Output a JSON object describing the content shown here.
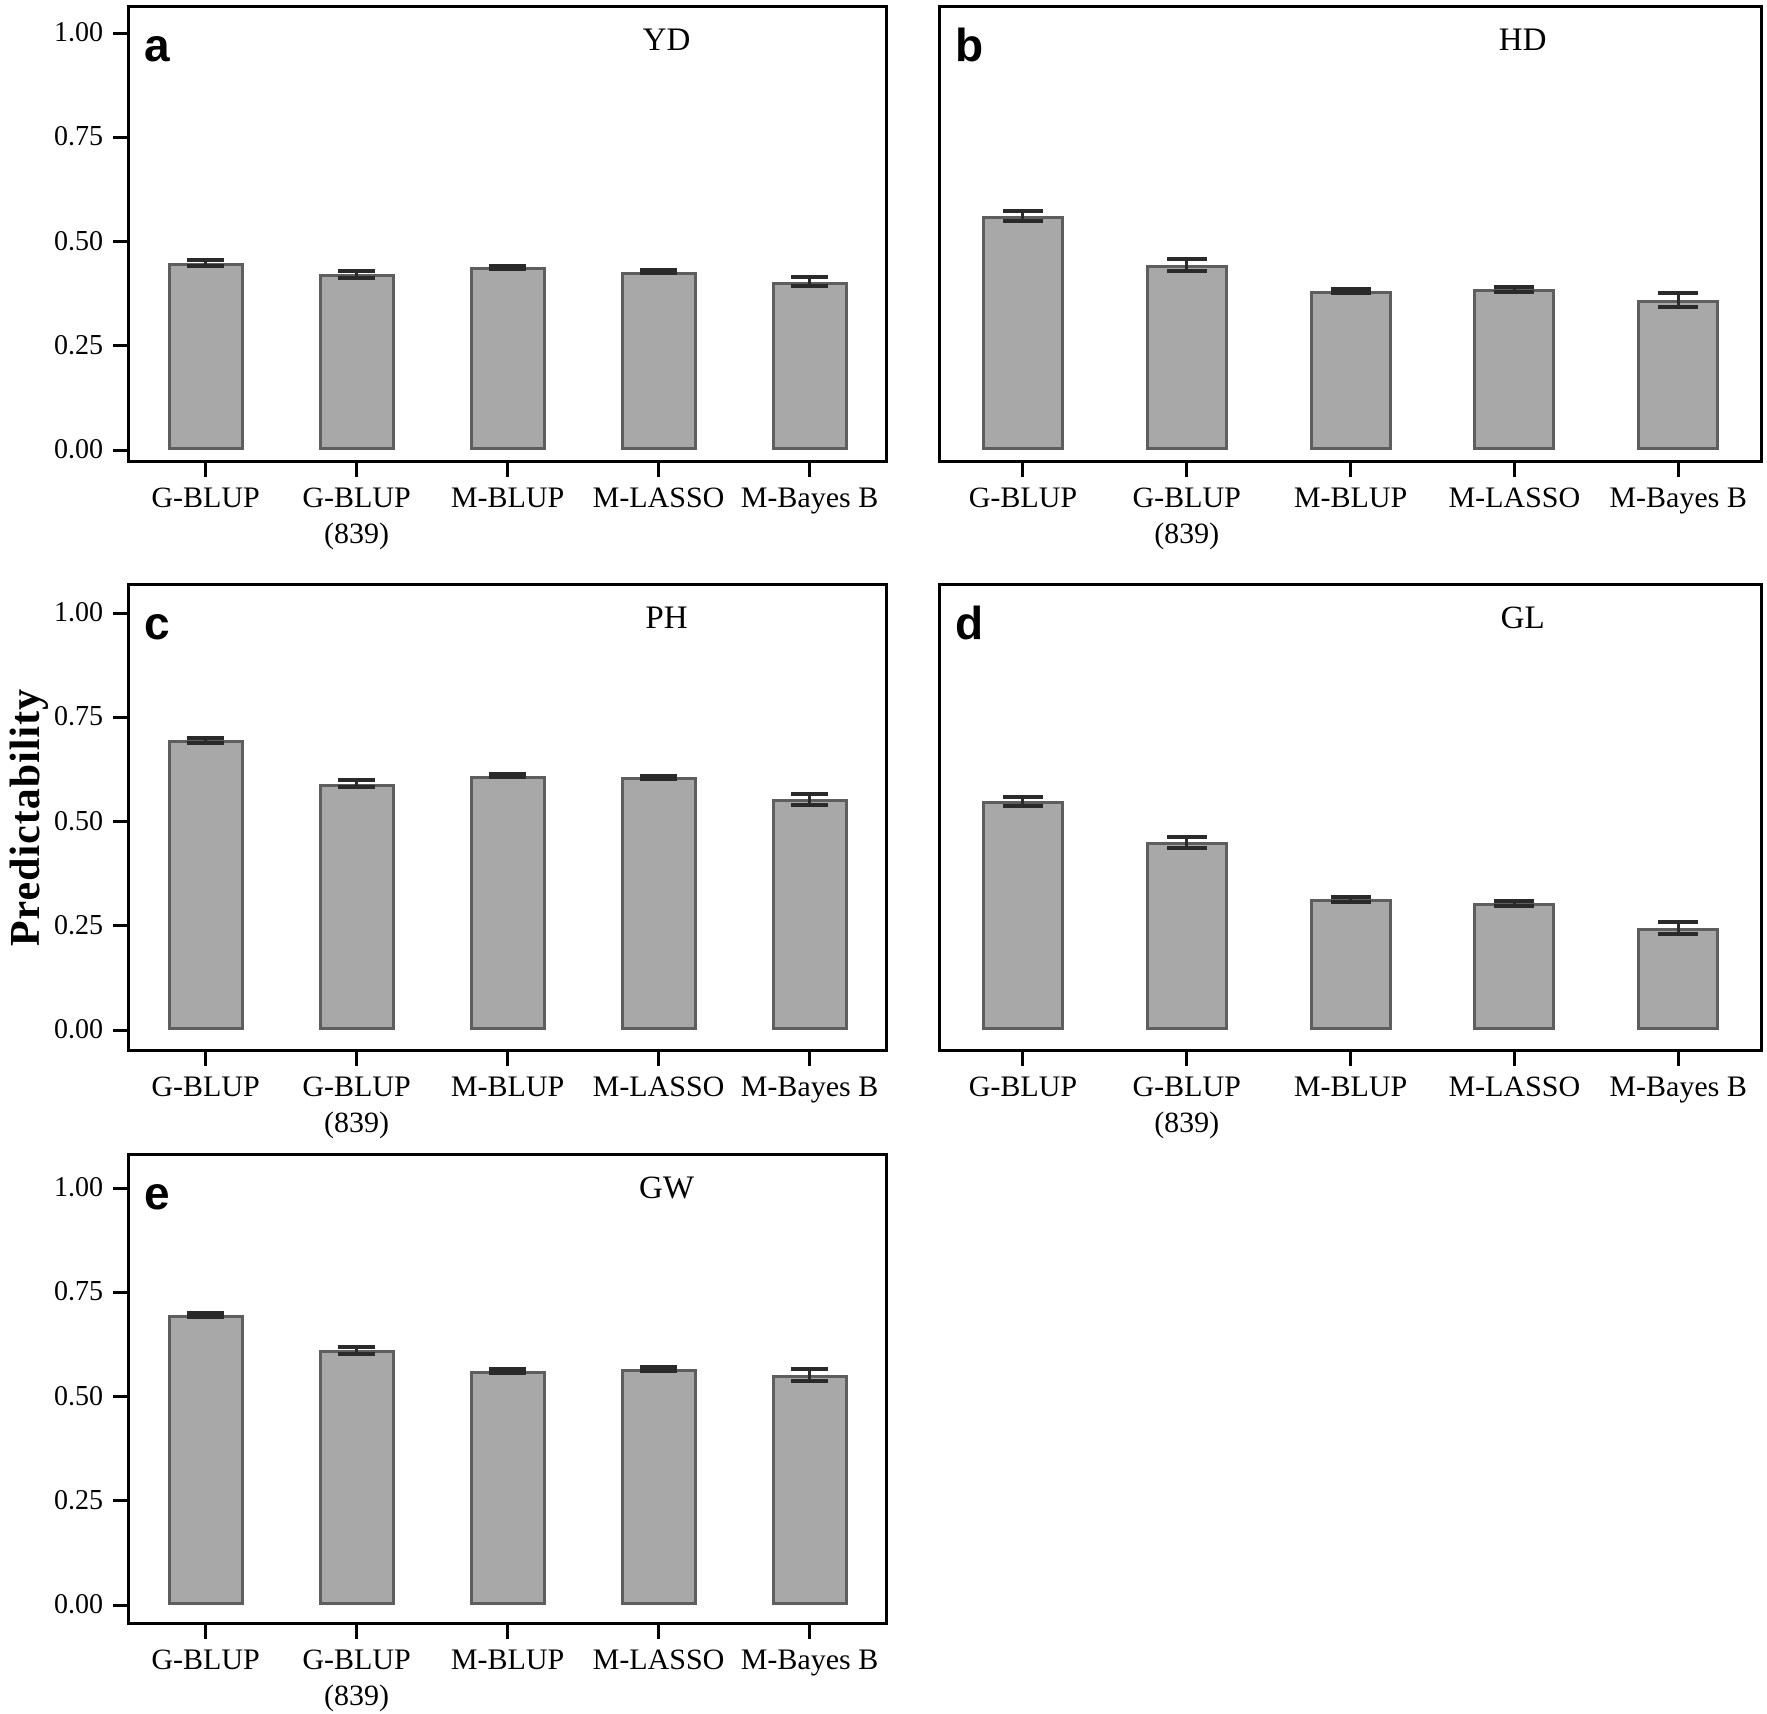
{
  "figure": {
    "background": "#ffffff",
    "ylabel": "Predictability",
    "y_tick_labels": [
      "1.00",
      "0.75",
      "0.50",
      "0.25",
      "0.00"
    ],
    "categories": [
      "G-BLUP",
      "G-BLUP (839)",
      "M-BLUP",
      "M-LASSO",
      "M-Bayes B"
    ],
    "category_label_lines": [
      [
        "G-BLUP"
      ],
      [
        "G-BLUP",
        "(839)"
      ],
      [
        "M-BLUP"
      ],
      [
        "M-LASSO"
      ],
      [
        "M-Bayes B"
      ]
    ],
    "colors": {
      "bar_fill": "#a8a8a8",
      "bar_border": "#5e5e5e",
      "error_bar": "#2a2a2a",
      "axis": "#000000",
      "text": "#000000"
    }
  },
  "chart_data": [
    {
      "type": "bar",
      "panel": "a",
      "title": "YD",
      "ylabel": "Predictability",
      "ylim": [
        0,
        1
      ],
      "yticks": [
        1.0,
        0.75,
        0.5,
        0.25,
        0.0
      ],
      "categories": [
        "G-BLUP",
        "G-BLUP (839)",
        "M-BLUP",
        "M-LASSO",
        "M-Bayes B"
      ],
      "values": [
        0.448,
        0.421,
        0.438,
        0.428,
        0.404
      ],
      "errors": [
        0.007,
        0.009,
        0.004,
        0.004,
        0.011
      ]
    },
    {
      "type": "bar",
      "panel": "b",
      "title": "HD",
      "ylabel": "Predictability",
      "ylim": [
        0,
        1
      ],
      "yticks": [
        1.0,
        0.75,
        0.5,
        0.25,
        0.0
      ],
      "categories": [
        "G-BLUP",
        "G-BLUP (839)",
        "M-BLUP",
        "M-LASSO",
        "M-Bayes B"
      ],
      "values": [
        0.561,
        0.443,
        0.381,
        0.385,
        0.36
      ],
      "errors": [
        0.013,
        0.014,
        0.004,
        0.005,
        0.017
      ]
    },
    {
      "type": "bar",
      "panel": "c",
      "title": "PH",
      "ylabel": "Predictability",
      "ylim": [
        0,
        1
      ],
      "yticks": [
        1.0,
        0.75,
        0.5,
        0.25,
        0.0
      ],
      "categories": [
        "G-BLUP",
        "G-BLUP (839)",
        "M-BLUP",
        "M-LASSO",
        "M-Bayes B"
      ],
      "values": [
        0.695,
        0.591,
        0.61,
        0.606,
        0.553
      ],
      "errors": [
        0.006,
        0.008,
        0.004,
        0.004,
        0.013
      ]
    },
    {
      "type": "bar",
      "panel": "d",
      "title": "GL",
      "ylabel": "Predictability",
      "ylim": [
        0,
        1
      ],
      "yticks": [
        1.0,
        0.75,
        0.5,
        0.25,
        0.0
      ],
      "categories": [
        "G-BLUP",
        "G-BLUP (839)",
        "M-BLUP",
        "M-LASSO",
        "M-Bayes B"
      ],
      "values": [
        0.548,
        0.45,
        0.313,
        0.304,
        0.245
      ],
      "errors": [
        0.01,
        0.013,
        0.005,
        0.006,
        0.015
      ]
    },
    {
      "type": "bar",
      "panel": "e",
      "title": "GW",
      "ylabel": "Predictability",
      "ylim": [
        0,
        1
      ],
      "yticks": [
        1.0,
        0.75,
        0.5,
        0.25,
        0.0
      ],
      "categories": [
        "G-BLUP",
        "G-BLUP (839)",
        "M-BLUP",
        "M-LASSO",
        "M-Bayes B"
      ],
      "values": [
        0.695,
        0.611,
        0.561,
        0.566,
        0.552
      ],
      "errors": [
        0.005,
        0.008,
        0.005,
        0.004,
        0.014
      ]
    }
  ]
}
